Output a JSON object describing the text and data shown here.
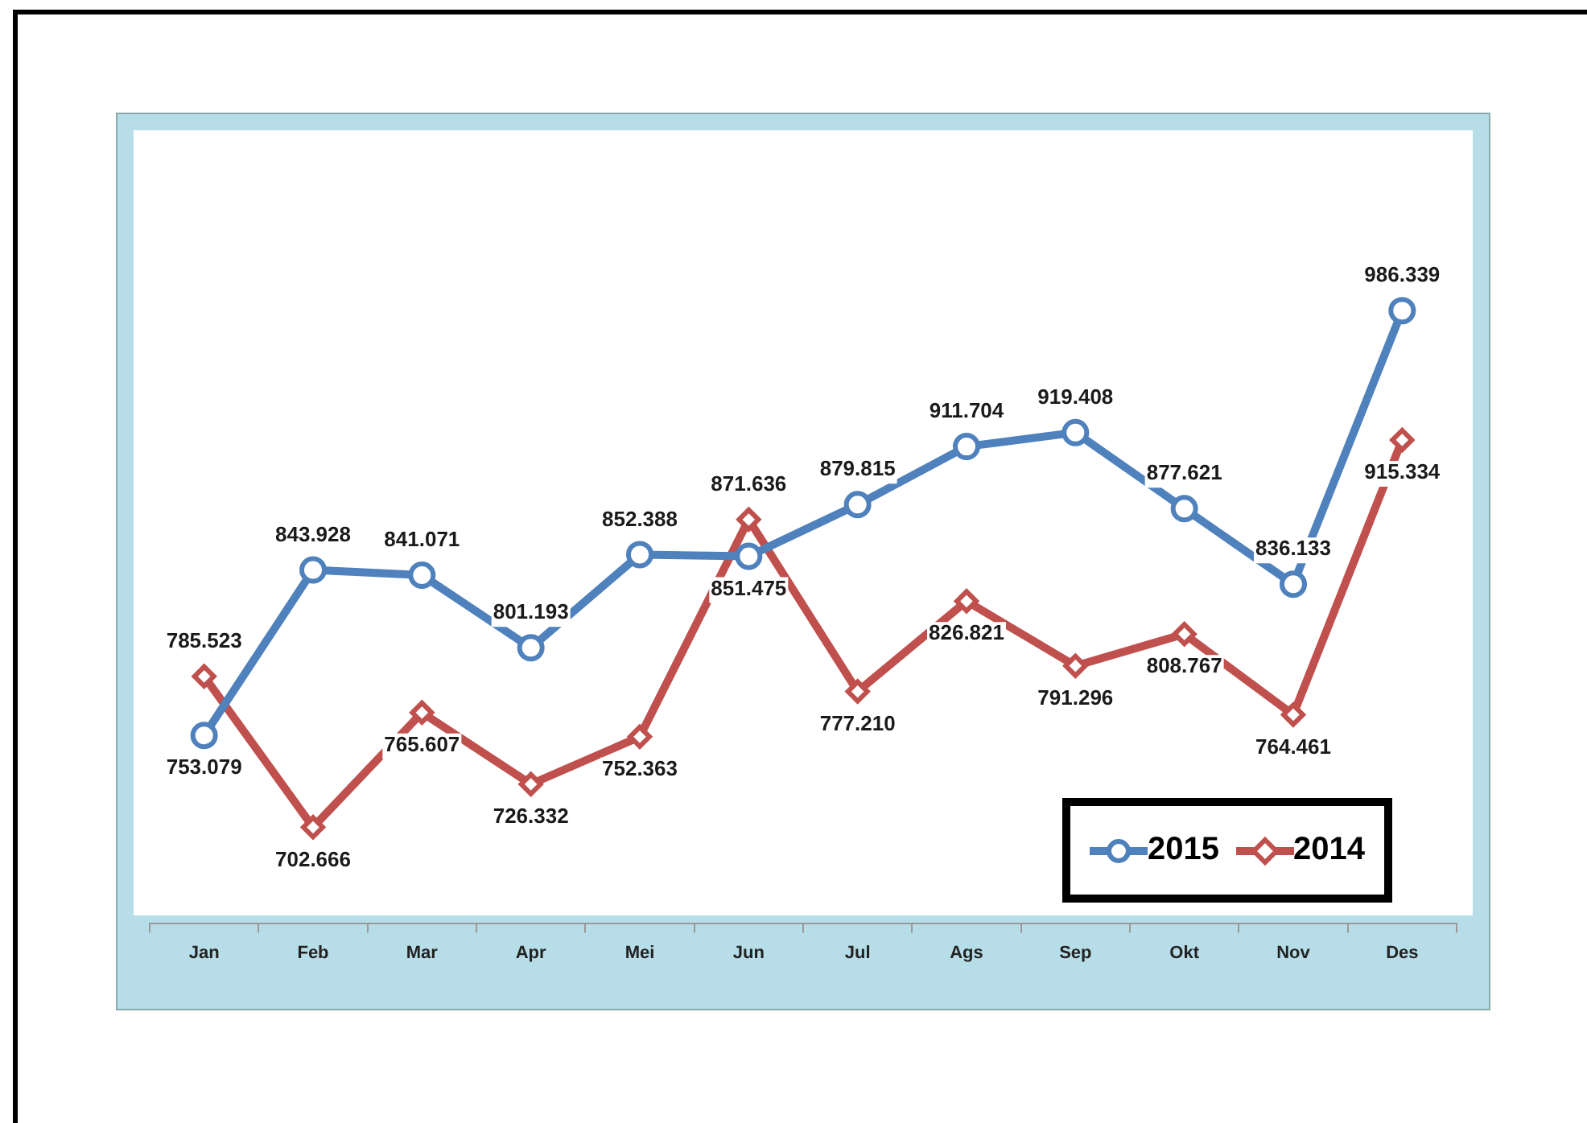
{
  "chart_data": {
    "type": "line",
    "categories": [
      "Jan",
      "Feb",
      "Mar",
      "Apr",
      "Mei",
      "Jun",
      "Jul",
      "Ags",
      "Sep",
      "Okt",
      "Nov",
      "Des"
    ],
    "series": [
      {
        "name": "2015",
        "color": "#4f81bd",
        "marker": "circle",
        "values": [
          753.079,
          843.928,
          841.071,
          801.193,
          852.388,
          851.475,
          879.815,
          911.704,
          919.408,
          877.621,
          836.133,
          986.339
        ],
        "value_labels": [
          "753.079",
          "843.928",
          "841.071",
          "801.193",
          "852.388",
          "851.475",
          "879.815",
          "911.704",
          "919.408",
          "877.621",
          "836.133",
          "986.339"
        ]
      },
      {
        "name": "2014",
        "color": "#c0504d",
        "marker": "diamond",
        "values": [
          785.523,
          702.666,
          765.607,
          726.332,
          752.363,
          871.636,
          777.21,
          826.821,
          791.296,
          808.767,
          764.461,
          915.334
        ],
        "value_labels": [
          "785.523",
          "702.666",
          "765.607",
          "726.332",
          "752.363",
          "871.636",
          "777.210",
          "826.821",
          "791.296",
          "808.767",
          "764.461",
          "915.334"
        ]
      }
    ],
    "legend": "bottom right",
    "grid": false
  }
}
